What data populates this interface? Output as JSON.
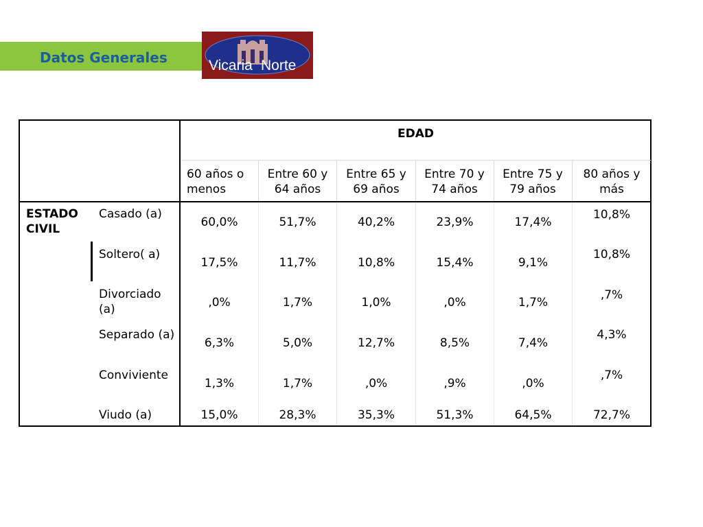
{
  "header": {
    "title": "Datos Generales",
    "accent_color": "#8cc63e",
    "title_color": "#1a5f9c"
  },
  "logo": {
    "text_part1": "Vicaria",
    "text_part2": "Norte",
    "background": "#8b1a1a"
  },
  "table": {
    "group_header": "EDAD",
    "columns": [
      "60 años o menos",
      "Entre 60 y 64 años",
      "Entre 65 y 69 años",
      "Entre 70 y 74 años",
      "Entre 75 y 79 años",
      "80 años y más"
    ],
    "row_group_label": "ESTADO CIVIL",
    "rows": [
      {
        "label": "Casado (a)",
        "values": [
          "60,0%",
          "51,7%",
          "40,2%",
          "23,9%",
          "17,4%",
          "10,8%"
        ]
      },
      {
        "label": "Soltero( a)",
        "values": [
          "17,5%",
          "11,7%",
          "10,8%",
          "15,4%",
          "9,1%",
          "10,8%"
        ]
      },
      {
        "label": "Divorciado (a)",
        "values": [
          ",0%",
          "1,7%",
          "1,0%",
          ",0%",
          "1,7%",
          ",7%"
        ]
      },
      {
        "label": "Separado (a)",
        "values": [
          "6,3%",
          "5,0%",
          "12,7%",
          "8,5%",
          "7,4%",
          "4,3%"
        ]
      },
      {
        "label": "Conviviente",
        "values": [
          "1,3%",
          "1,7%",
          ",0%",
          ",9%",
          ",0%",
          ",7%"
        ]
      },
      {
        "label": "Viudo (a)",
        "values": [
          "15,0%",
          "28,3%",
          "35,3%",
          "51,3%",
          "64,5%",
          "72,7%"
        ]
      }
    ]
  }
}
